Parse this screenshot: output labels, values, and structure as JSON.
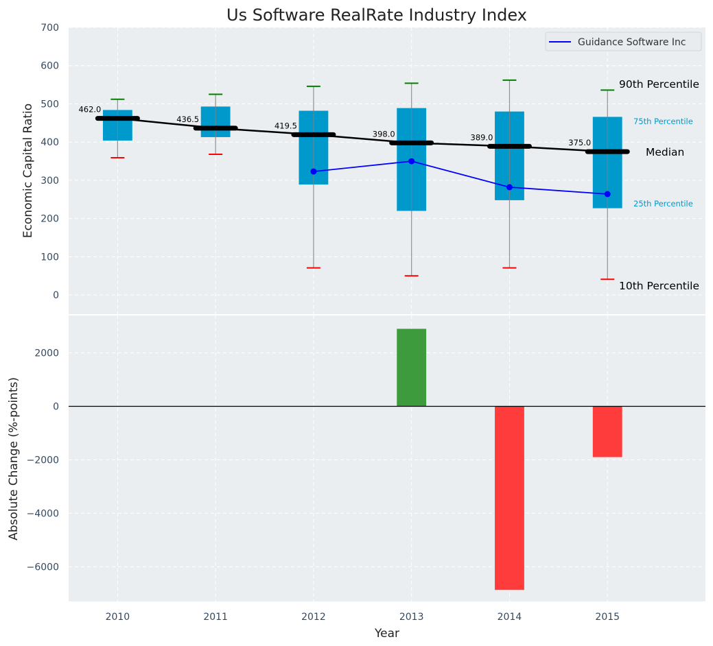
{
  "chart_data": [
    {
      "type": "box",
      "title": "Us Software RealRate Industry Index",
      "xlabel": "",
      "ylabel": "Economic Capital Ratio",
      "categories": [
        "2010",
        "2011",
        "2012",
        "2013",
        "2014",
        "2015"
      ],
      "x": [
        2010,
        2011,
        2012,
        2013,
        2014,
        2015
      ],
      "xlim": [
        2009.5,
        2016.0
      ],
      "ylim": [
        -50,
        700
      ],
      "yticks": [
        0,
        100,
        200,
        300,
        400,
        500,
        600,
        700
      ],
      "grid": true,
      "percentiles": {
        "p10": [
          359,
          368,
          71,
          50,
          71,
          41
        ],
        "p25": [
          404,
          413,
          289,
          220,
          248,
          227
        ],
        "median": [
          462.0,
          436.5,
          419.5,
          398.0,
          389.0,
          375.0
        ],
        "p75": [
          484,
          493,
          482,
          489,
          480,
          466
        ],
        "p90": [
          512,
          525,
          546,
          554,
          562,
          536
        ]
      },
      "median_labels": [
        "462.0",
        "436.5",
        "419.5",
        "398.0",
        "389.0",
        "375.0"
      ],
      "series": [
        {
          "name": "Guidance Software Inc",
          "x": [
            2012,
            2013,
            2014,
            2015
          ],
          "values": [
            323,
            350,
            282,
            264
          ],
          "color": "#0000ff"
        }
      ],
      "legend": {
        "position": "top-right",
        "entries": [
          "Guidance Software Inc"
        ]
      },
      "annotations": {
        "p90": "90th Percentile",
        "p75": "75th Percentile",
        "median": "Median",
        "p25": "25th Percentile",
        "p10": "10th Percentile"
      },
      "colors": {
        "box": "#0099cc",
        "median": "#000000",
        "p90_cap": "#008000",
        "p10_cap": "#ff0000",
        "whisker": "#808080",
        "company": "#0000ff",
        "p75_text": "#0099cc",
        "p25_text": "#0099cc"
      }
    },
    {
      "type": "bar",
      "title": "",
      "xlabel": "Year",
      "ylabel": "Absolute Change (%-points)",
      "categories": [
        "2010",
        "2011",
        "2012",
        "2013",
        "2014",
        "2015"
      ],
      "x": [
        2013,
        2014,
        2015
      ],
      "values": [
        2900,
        -6870,
        -1900
      ],
      "xlim": [
        2009.5,
        2016.0
      ],
      "ylim": [
        -7300,
        3400
      ],
      "yticks": [
        -6000,
        -4000,
        -2000,
        0,
        2000
      ],
      "ytick_labels": [
        "−6000",
        "−4000",
        "−2000",
        "0",
        "2000"
      ],
      "grid": true,
      "colors": {
        "positive": "#3d9b3d",
        "negative": "#ff3c3c",
        "zero_line": "#000000"
      }
    }
  ]
}
